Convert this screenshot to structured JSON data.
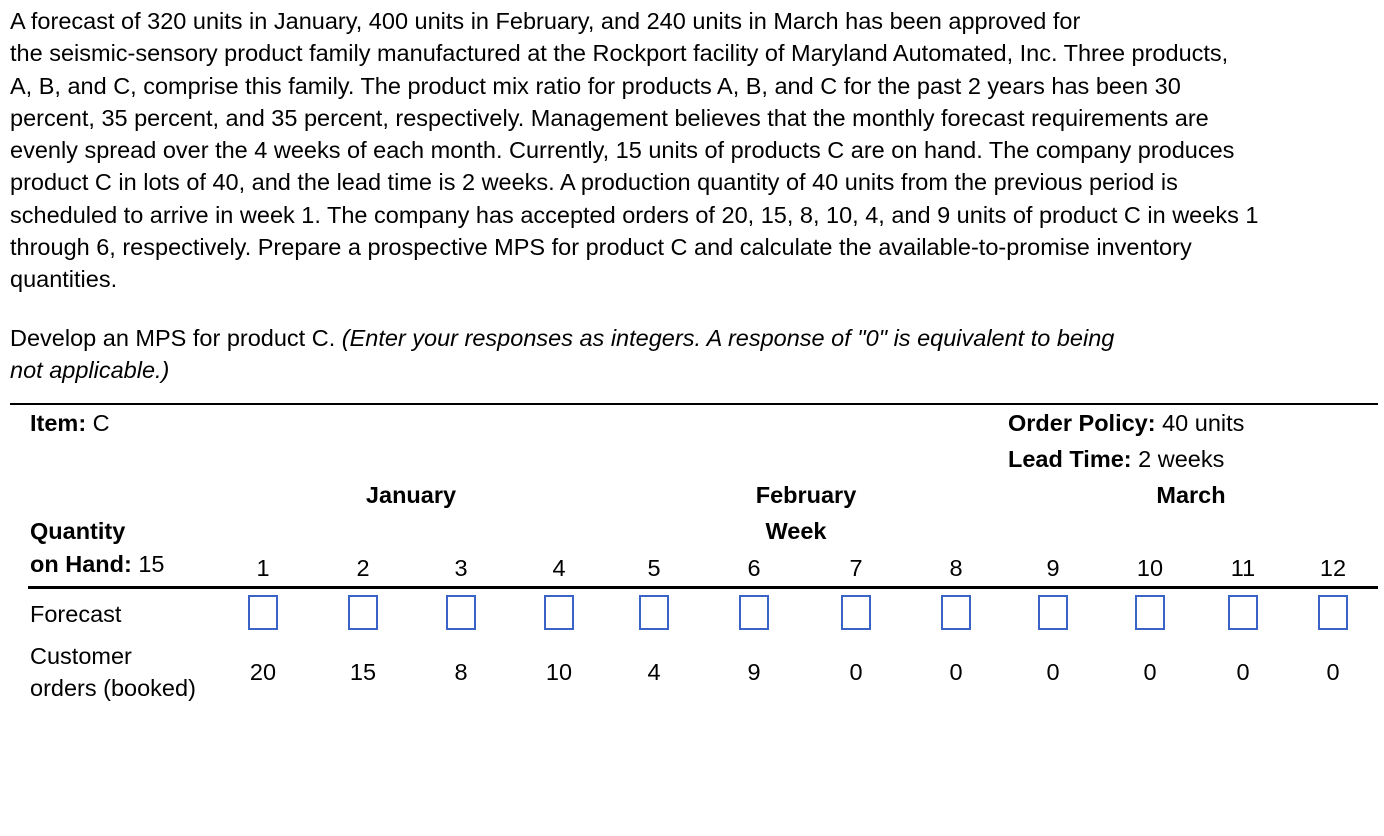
{
  "problem": {
    "lines": [
      "A forecast of 320 units in January, 400 units in February, and 240 units in March has been approved for",
      "the seismic-sensory product family manufactured at the Rockport facility of Maryland Automated, Inc. Three products,",
      "A, B, and C, comprise this family. The product mix ratio for products A, B, and C for the past 2 years has been 30",
      "percent, 35 percent, and 35 percent, respectively. Management believes that the monthly forecast requirements are",
      "evenly spread over the 4 weeks of each month. Currently, 15 units of products C are on hand. The company produces",
      "product C in lots of 40, and the lead time is 2 weeks. A production quantity of 40 units from the previous period is",
      "scheduled to arrive in week 1. The company has accepted orders of 20, 15, 8, 10, 4, and 9 units of product C in weeks 1",
      "through 6, respectively. Prepare a prospective MPS for product C and calculate the available-to-promise inventory",
      "quantities."
    ]
  },
  "prompt": {
    "text": "Develop an MPS for product C. ",
    "instruction_line1": "(Enter your responses as integers. A response of \"0\" is equivalent to being",
    "instruction_line2": "not applicable.)"
  },
  "table": {
    "item_label": "Item:",
    "item_value": " C",
    "order_policy_label": "Order Policy:",
    "order_policy_value": " 40 units",
    "lead_time_label": "Lead Time:",
    "lead_time_value": " 2 weeks",
    "months": [
      "January",
      "February",
      "March"
    ],
    "week_label": "Week",
    "qoh_label_line1": "Quantity",
    "qoh_label_line2": "on Hand:",
    "qoh_value": " 15",
    "weeks": [
      "1",
      "2",
      "3",
      "4",
      "5",
      "6",
      "7",
      "8",
      "9",
      "10",
      "11",
      "12"
    ],
    "forecast_label": "Forecast",
    "forecast_values": [
      "",
      "",
      "",
      "",
      "",
      "",
      "",
      "",
      "",
      "",
      "",
      ""
    ],
    "customer_orders_label_line1": "Customer",
    "customer_orders_label_line2": "orders (booked)",
    "customer_orders": [
      "20",
      "15",
      "8",
      "10",
      "4",
      "9",
      "0",
      "0",
      "0",
      "0",
      "0",
      "0"
    ]
  },
  "colors": {
    "input_border": "#3a63c8",
    "rule": "#000000"
  }
}
